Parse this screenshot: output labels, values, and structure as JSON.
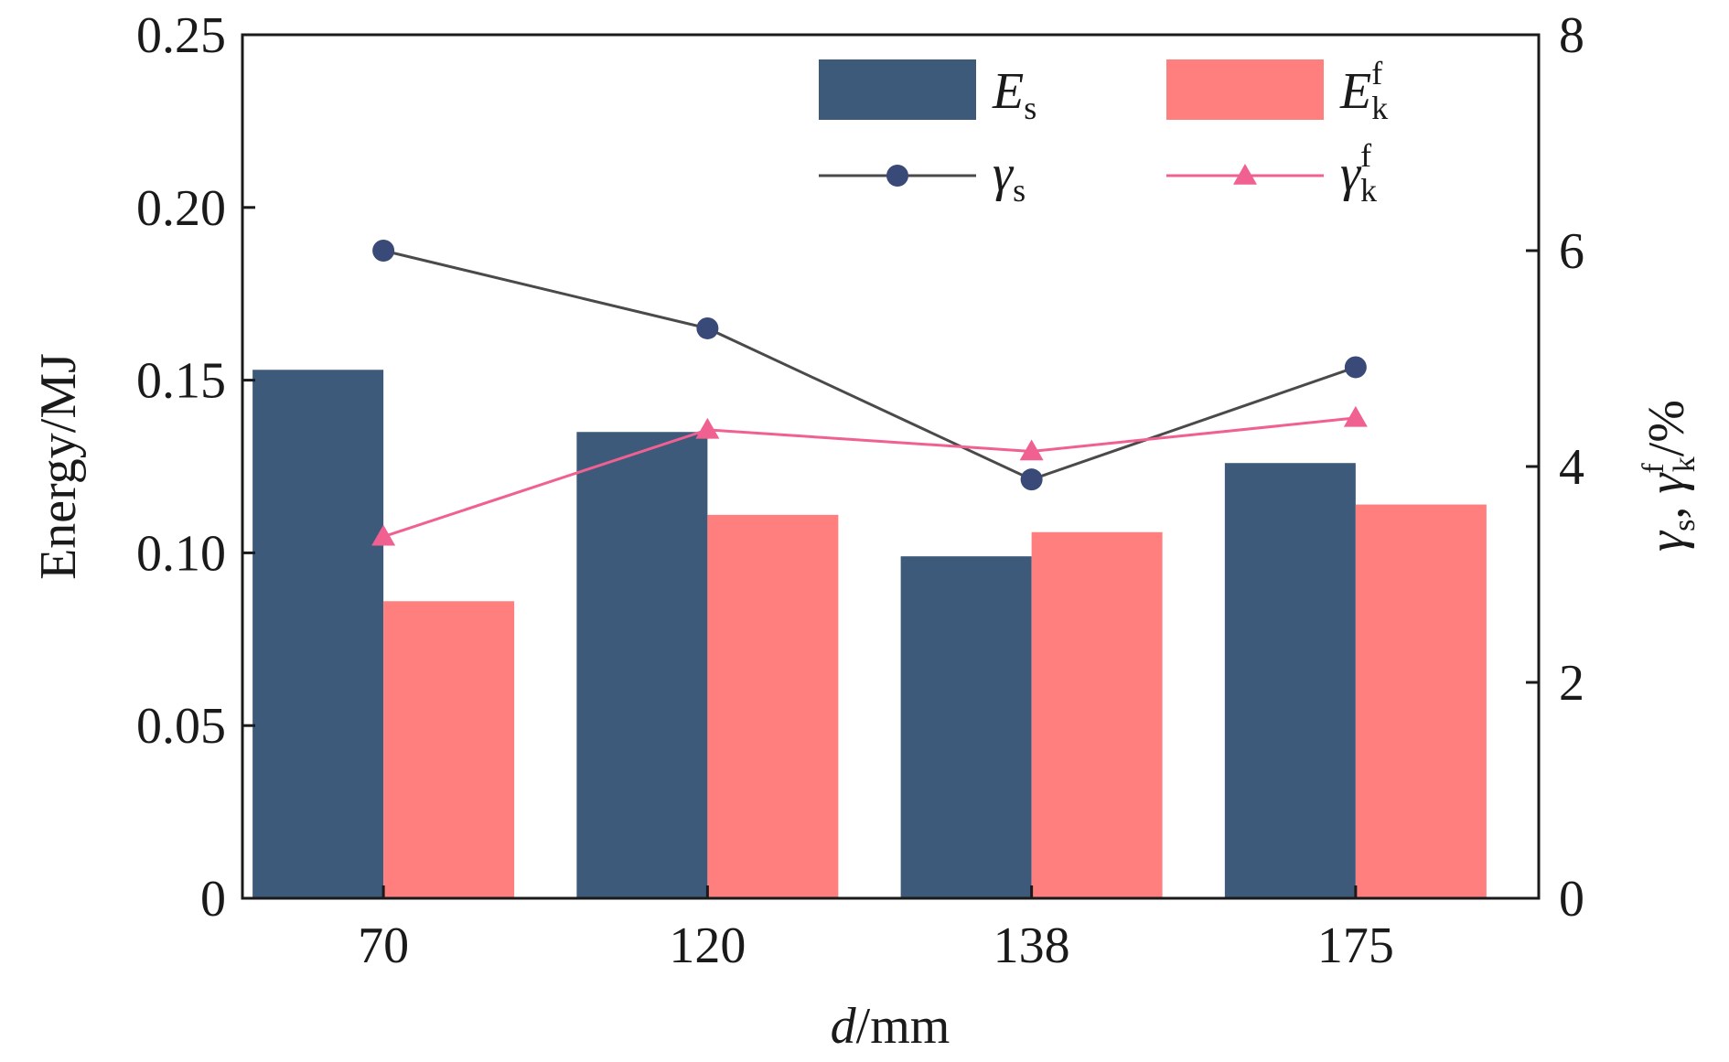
{
  "chart_data": {
    "type": "bar",
    "categories": [
      "70",
      "120",
      "138",
      "175"
    ],
    "xlabel_italic": "d",
    "xlabel_rest": "/mm",
    "ylabel": "Energy/MJ",
    "ylabel_right": {
      "g1": "γ",
      "s1": "s",
      "sep": ", ",
      "g2": "γ",
      "sup2": "f",
      "sub2": "k",
      "tail": "/%"
    },
    "ylim": [
      0,
      0.25
    ],
    "ylim_right": [
      0,
      8
    ],
    "yticks": [
      "0",
      "0.05",
      "0.10",
      "0.15",
      "0.20",
      "0.25"
    ],
    "yticks_right": [
      "0",
      "2",
      "4",
      "6",
      "8"
    ],
    "bar_series": [
      {
        "main": "E",
        "sub": "s",
        "sup": "",
        "color": "#3d5a7a",
        "values": [
          0.153,
          0.135,
          0.099,
          0.126
        ]
      },
      {
        "main": "E",
        "sub": "k",
        "sup": "f",
        "color": "#ff7f7f",
        "values": [
          0.086,
          0.111,
          0.106,
          0.114
        ]
      }
    ],
    "line_series": [
      {
        "main": "γ",
        "sub": "s",
        "sup": "",
        "color": "#4a4a4a",
        "marker_color": "#3a4a78",
        "marker": "circle",
        "values": [
          6.0,
          5.28,
          3.88,
          4.92
        ]
      },
      {
        "main": "γ",
        "sub": "k",
        "sup": "f",
        "color": "#f06090",
        "marker_color": "#f06090",
        "marker": "triangle",
        "values": [
          3.35,
          4.34,
          4.14,
          4.45
        ]
      }
    ],
    "legend_position": "top-right",
    "grid": false
  }
}
